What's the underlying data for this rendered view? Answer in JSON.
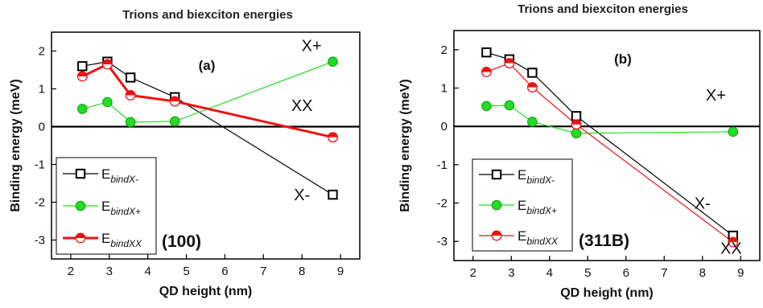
{
  "chart_data": [
    {
      "type": "line",
      "title": "Trions and biexciton energies",
      "xlabel": "QD height (nm)",
      "ylabel": "Binding energy (meV)",
      "xlim": [
        1.5,
        9.5
      ],
      "ylim": [
        -3.5,
        2.5
      ],
      "xticks": [
        2,
        3,
        4,
        5,
        6,
        7,
        8,
        9
      ],
      "yticks": [
        -3,
        -2,
        -1,
        0,
        1,
        2
      ],
      "panel_label": "(a)",
      "sample_label": "(100)",
      "series": [
        {
          "key": "X-",
          "legend": "E",
          "legend_sub": "bindX-",
          "color": "#000000",
          "marker": "square",
          "line_width": 1.2,
          "x": [
            2.3,
            2.95,
            3.55,
            4.7,
            8.8
          ],
          "y": [
            1.6,
            1.72,
            1.3,
            0.78,
            -1.8
          ]
        },
        {
          "key": "X+",
          "legend": "E",
          "legend_sub": "bindX+",
          "color": "#22dd22",
          "marker": "circle",
          "line_width": 1.2,
          "x": [
            2.3,
            2.95,
            3.55,
            4.7,
            8.8
          ],
          "y": [
            0.47,
            0.65,
            0.12,
            0.14,
            1.72
          ]
        },
        {
          "key": "XX",
          "legend": "E",
          "legend_sub": "bindXX",
          "color": "#ee1111",
          "marker": "halfcircle",
          "line_width": 3,
          "x": [
            2.3,
            2.95,
            3.55,
            4.7,
            8.8
          ],
          "y": [
            1.33,
            1.65,
            0.83,
            0.67,
            -0.28
          ]
        }
      ],
      "annotations": [
        {
          "text": "X+",
          "x": 8.25,
          "y": 2.0
        },
        {
          "text": "XX",
          "x": 8.0,
          "y": 0.42
        },
        {
          "text": "X-",
          "x": 8.0,
          "y": -1.95
        }
      ]
    },
    {
      "type": "line",
      "title": "Trions and biexciton energies",
      "xlabel": "QD height (nm)",
      "ylabel": "Binding energy (meV)",
      "xlim": [
        1.5,
        9.5
      ],
      "ylim": [
        -3.5,
        2.5
      ],
      "xticks": [
        2,
        3,
        4,
        5,
        6,
        7,
        8,
        9
      ],
      "yticks": [
        -3,
        -2,
        -1,
        0,
        1,
        2
      ],
      "panel_label": "(b)",
      "sample_label": "(311B)",
      "series": [
        {
          "key": "X-",
          "legend": "E",
          "legend_sub": "bindX-",
          "color": "#000000",
          "marker": "square",
          "line_width": 1.2,
          "x": [
            2.35,
            2.95,
            3.55,
            4.7,
            8.8
          ],
          "y": [
            1.93,
            1.75,
            1.4,
            0.27,
            -2.85
          ]
        },
        {
          "key": "X+",
          "legend": "E",
          "legend_sub": "bindX+",
          "color": "#22dd22",
          "marker": "circle",
          "line_width": 1.2,
          "x": [
            2.35,
            2.95,
            3.55,
            4.7,
            8.8
          ],
          "y": [
            0.53,
            0.55,
            0.12,
            -0.18,
            -0.14
          ]
        },
        {
          "key": "XX",
          "legend": "E",
          "legend_sub": "bindXX",
          "color": "#ee1111",
          "marker": "halfcircle",
          "line_width": 1.2,
          "x": [
            2.35,
            2.95,
            3.55,
            4.7,
            8.8
          ],
          "y": [
            1.42,
            1.65,
            1.02,
            0.05,
            -3.02
          ]
        }
      ],
      "annotations": [
        {
          "text": "X+",
          "x": 8.35,
          "y": 0.68
        },
        {
          "text": "X-",
          "x": 8.0,
          "y": -2.15
        },
        {
          "text": "XX",
          "x": 8.75,
          "y": -3.32
        }
      ]
    }
  ]
}
